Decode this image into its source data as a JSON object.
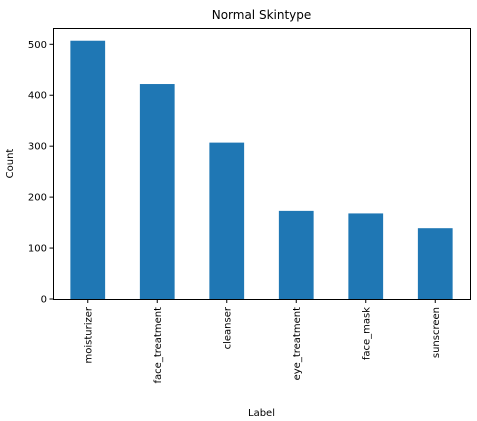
{
  "chart_data": {
    "type": "bar",
    "title": "Normal Skintype",
    "xlabel": "Label",
    "ylabel": "Count",
    "categories": [
      "moisturizer",
      "face_treatment",
      "cleanser",
      "eye_treatment",
      "face_mask",
      "sunscreen"
    ],
    "values": [
      507,
      422,
      307,
      173,
      168,
      139
    ],
    "ylim": [
      0,
      532
    ],
    "yticks": [
      0,
      100,
      200,
      300,
      400,
      500
    ],
    "bar_color": "#1f77b4",
    "grid": false,
    "legend": "none"
  }
}
